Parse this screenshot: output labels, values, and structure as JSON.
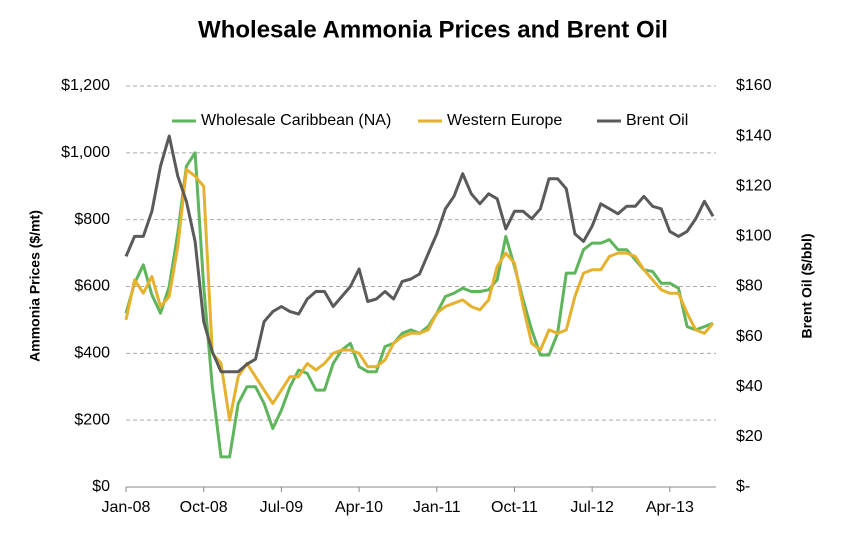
{
  "chart_data": {
    "type": "line",
    "title": "Wholesale Ammonia Prices and Brent Oil",
    "y_label": "Ammonia Prices ($/mt)",
    "y2_label": "Brent Oil ($/bbl)",
    "categories": [
      "Jan-08",
      null,
      null,
      null,
      null,
      null,
      null,
      null,
      null,
      "Oct-08",
      null,
      null,
      null,
      null,
      null,
      null,
      null,
      null,
      "Jul-09",
      null,
      null,
      null,
      null,
      null,
      null,
      null,
      null,
      "Apr-10",
      null,
      null,
      null,
      null,
      null,
      null,
      null,
      null,
      "Jan-11",
      null,
      null,
      null,
      null,
      null,
      null,
      null,
      null,
      "Oct-11",
      null,
      null,
      null,
      null,
      null,
      null,
      null,
      null,
      "Jul-12",
      null,
      null,
      null,
      null,
      null,
      null,
      null,
      null,
      "Apr-13",
      null,
      null,
      null,
      null,
      null
    ],
    "series": [
      {
        "name": "Wholesale Caribbean (NA)",
        "color": "#5eb55c",
        "values": [
          520,
          610,
          665,
          575,
          520,
          600,
          760,
          960,
          1000,
          600,
          300,
          90,
          90,
          250,
          300,
          300,
          250,
          175,
          230,
          300,
          350,
          340,
          290,
          290,
          370,
          410,
          430,
          360,
          345,
          345,
          420,
          430,
          460,
          470,
          460,
          480,
          520,
          570,
          580,
          595,
          585,
          585,
          590,
          620,
          750,
          660,
          560,
          470,
          395,
          395,
          460,
          640,
          640,
          710,
          730,
          730,
          740,
          710,
          710,
          680,
          650,
          645,
          610,
          610,
          595,
          480,
          470,
          480,
          490
        ]
      },
      {
        "name": "Western Europe",
        "color": "#e6b12e",
        "values": [
          500,
          620,
          580,
          630,
          540,
          570,
          720,
          950,
          930,
          900,
          400,
          370,
          200,
          330,
          370,
          330,
          290,
          250,
          290,
          330,
          330,
          370,
          350,
          370,
          400,
          410,
          410,
          400,
          360,
          360,
          380,
          430,
          450,
          460,
          460,
          470,
          520,
          540,
          550,
          560,
          540,
          530,
          560,
          660,
          700,
          670,
          540,
          430,
          410,
          470,
          460,
          470,
          570,
          640,
          650,
          650,
          690,
          700,
          700,
          690,
          650,
          620,
          590,
          580,
          580,
          520,
          470,
          460,
          490
        ]
      },
      {
        "name": "Brent Oil",
        "color": "#5a5a5a",
        "axis": "y2",
        "values": [
          92,
          100,
          100,
          110,
          128,
          140,
          124,
          114,
          98,
          66,
          54,
          46,
          46,
          46,
          49,
          51,
          66,
          70,
          72,
          70,
          69,
          75,
          78,
          78,
          72,
          76,
          80,
          87,
          74,
          75,
          78,
          75,
          82,
          83,
          85,
          93,
          101,
          111,
          116,
          125,
          117,
          113,
          117,
          115,
          103,
          110,
          110,
          107,
          111,
          123,
          123,
          119,
          101,
          98,
          104,
          113,
          111,
          109,
          112,
          112,
          116,
          112,
          111,
          102,
          100,
          102,
          107,
          114,
          108
        ]
      }
    ],
    "ylim": [
      0,
      1200
    ],
    "yticks": [
      {
        "value": 0,
        "label": "$0"
      },
      {
        "value": 200,
        "label": "$200"
      },
      {
        "value": 400,
        "label": "$400"
      },
      {
        "value": 600,
        "label": "$600"
      },
      {
        "value": 800,
        "label": "$800"
      },
      {
        "value": 1000,
        "label": "$1,000"
      },
      {
        "value": 1200,
        "label": "$1,200"
      }
    ],
    "y2lim": [
      0,
      160
    ],
    "y2ticks": [
      {
        "value": 0,
        "label": "$-"
      },
      {
        "value": 20,
        "label": "$20"
      },
      {
        "value": 40,
        "label": "$40"
      },
      {
        "value": 60,
        "label": "$60"
      },
      {
        "value": 80,
        "label": "$80"
      },
      {
        "value": 100,
        "label": "$100"
      },
      {
        "value": 120,
        "label": "$120"
      },
      {
        "value": 140,
        "label": "$140"
      },
      {
        "value": 160,
        "label": "$160"
      }
    ],
    "grid": true
  }
}
